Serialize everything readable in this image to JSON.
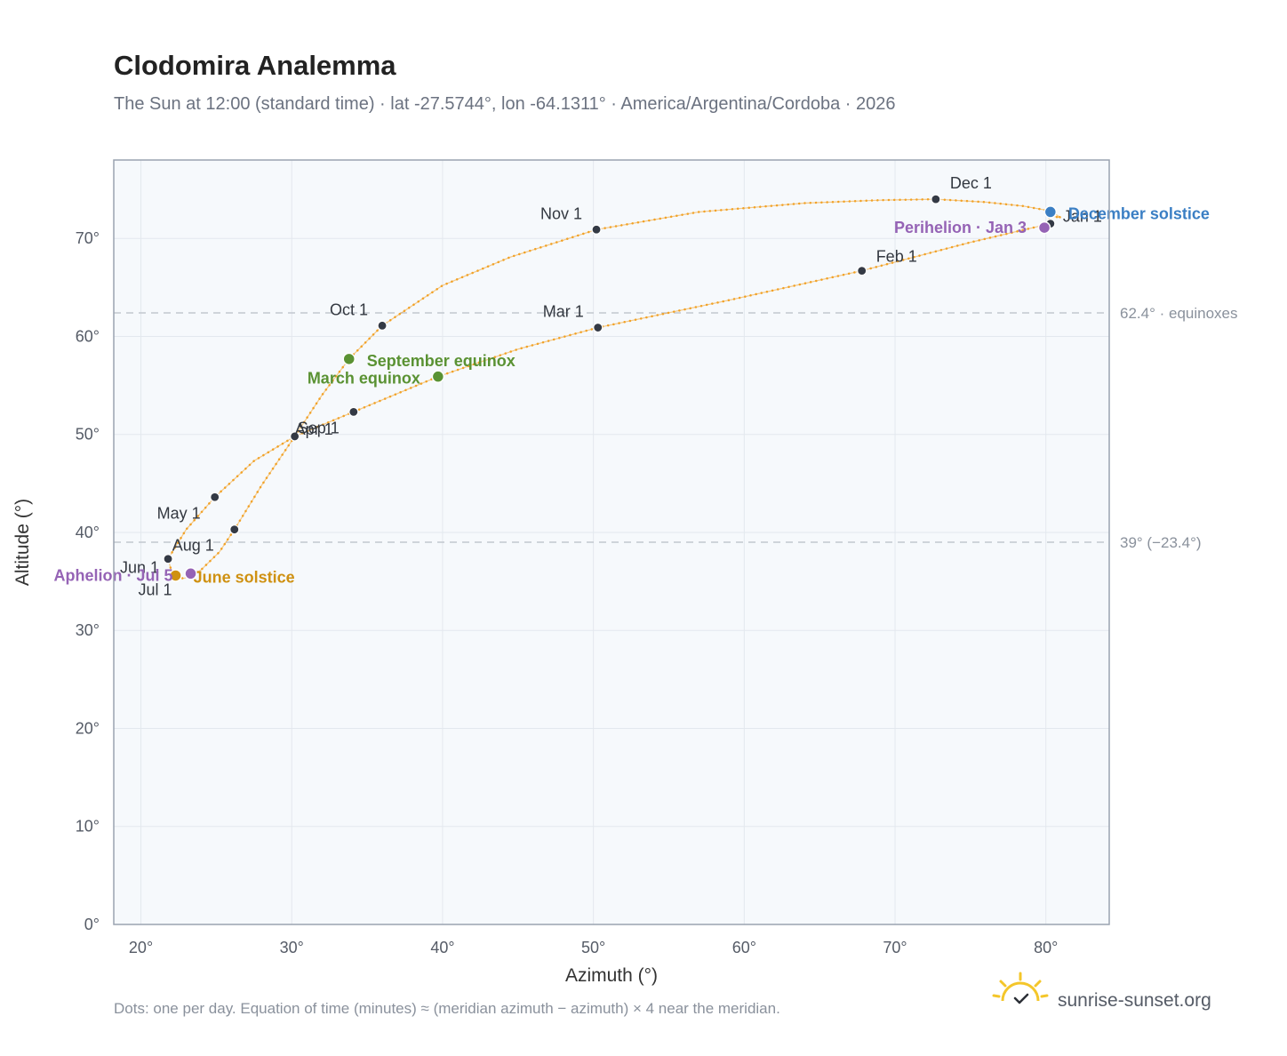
{
  "header": {
    "title": "Clodomira Analemma",
    "subtitle": "The Sun at 12:00 (standard time) · lat -27.5744°, lon -64.1311° · America/Argentina/Cordoba · 2026"
  },
  "footer": {
    "note": "Dots: one per day. Equation of time (minutes) ≈ (meridian azimuth − azimuth) × 4 near the meridian.",
    "brand": "sunrise-sunset.org",
    "logo_icon": "sun-check-icon"
  },
  "colors": {
    "curve": "#f2a328",
    "month_dot": "#343a45",
    "equinox": "#5a9233",
    "june_solstice": "#cf9112",
    "december_solstice": "#3b7fc4",
    "apsis": "#9563b5",
    "plot_bg": "#f6f9fc",
    "grid": "#e3e8ee",
    "frame": "#9aa3b0",
    "ref_line": "#c2c7cf"
  },
  "chart_data": {
    "type": "scatter",
    "title": "Clodomira Analemma",
    "xlabel": "Azimuth (°)",
    "ylabel": "Altitude (°)",
    "xlim": [
      18.2,
      84.2
    ],
    "ylim": [
      0,
      78
    ],
    "x_ticks": [
      20,
      30,
      40,
      50,
      60,
      70,
      80
    ],
    "y_ticks": [
      0,
      10,
      20,
      30,
      40,
      50,
      60,
      70
    ],
    "tick_suffix": "°",
    "grid": true,
    "series": [
      {
        "kind": "daily-path",
        "points": [
          [
            80.3,
            72.3
          ],
          [
            80.0,
            71.4
          ],
          [
            75.0,
            69.6
          ],
          [
            67.8,
            66.7
          ],
          [
            59.0,
            63.7
          ],
          [
            50.3,
            60.9
          ],
          [
            45.0,
            58.7
          ],
          [
            39.7,
            55.9
          ],
          [
            34.1,
            52.3
          ],
          [
            30.2,
            49.8
          ],
          [
            27.5,
            47.3
          ],
          [
            24.9,
            43.6
          ],
          [
            23.0,
            40.3
          ],
          [
            21.8,
            37.3
          ],
          [
            22.0,
            36.2
          ],
          [
            22.3,
            35.6
          ],
          [
            22.8,
            35.3
          ],
          [
            23.3,
            35.5
          ],
          [
            24.0,
            36.2
          ],
          [
            25.2,
            38.0
          ],
          [
            26.2,
            40.3
          ],
          [
            28.0,
            44.8
          ],
          [
            30.2,
            49.8
          ],
          [
            32.0,
            54.0
          ],
          [
            33.8,
            57.7
          ],
          [
            36.0,
            61.1
          ],
          [
            40.0,
            65.2
          ],
          [
            44.5,
            68.1
          ],
          [
            50.2,
            70.9
          ],
          [
            57.0,
            72.7
          ],
          [
            64.0,
            73.6
          ],
          [
            69.0,
            73.9
          ],
          [
            72.7,
            74.0
          ],
          [
            76.0,
            73.7
          ],
          [
            78.5,
            73.3
          ],
          [
            80.3,
            72.8
          ],
          [
            81.0,
            72.1
          ],
          [
            80.3,
            72.3
          ]
        ]
      }
    ],
    "month_markers": [
      {
        "label": "Jan 1",
        "x": 80.3,
        "y": 71.5
      },
      {
        "label": "Feb 1",
        "x": 67.8,
        "y": 66.7
      },
      {
        "label": "Mar 1",
        "x": 50.3,
        "y": 60.9
      },
      {
        "label": "Apr 1",
        "x": 30.2,
        "y": 49.8
      },
      {
        "label": "May 1",
        "x": 24.9,
        "y": 43.6
      },
      {
        "label": "Jun 1",
        "x": 21.8,
        "y": 37.3
      },
      {
        "label": "Jul 1",
        "x": 22.3,
        "y": 35.6
      },
      {
        "label": "Aug 1",
        "x": 26.2,
        "y": 40.3
      },
      {
        "label": "Sep 1",
        "x": 34.1,
        "y": 52.3
      },
      {
        "label": "Oct 1",
        "x": 36.0,
        "y": 61.1
      },
      {
        "label": "Nov 1",
        "x": 50.2,
        "y": 70.9
      },
      {
        "label": "Dec 1",
        "x": 72.7,
        "y": 74.0
      }
    ],
    "events": [
      {
        "label": "March equinox",
        "x": 39.7,
        "y": 55.9,
        "color_key": "equinox"
      },
      {
        "label": "September equinox",
        "x": 33.8,
        "y": 57.7,
        "color_key": "equinox"
      },
      {
        "label": "June solstice",
        "x": 22.3,
        "y": 35.6,
        "color_key": "june_solstice"
      },
      {
        "label": "December solstice",
        "x": 80.3,
        "y": 72.7,
        "color_key": "december_solstice"
      },
      {
        "label": "Perihelion · Jan 3",
        "x": 79.9,
        "y": 71.1,
        "color_key": "apsis"
      },
      {
        "label": "Aphelion · Jul 5",
        "x": 23.3,
        "y": 35.8,
        "color_key": "apsis"
      }
    ],
    "reference_lines": [
      {
        "y": 62.4,
        "label": "62.4° · equinoxes"
      },
      {
        "y": 39.0,
        "label": "39° (−23.4°)"
      }
    ]
  }
}
